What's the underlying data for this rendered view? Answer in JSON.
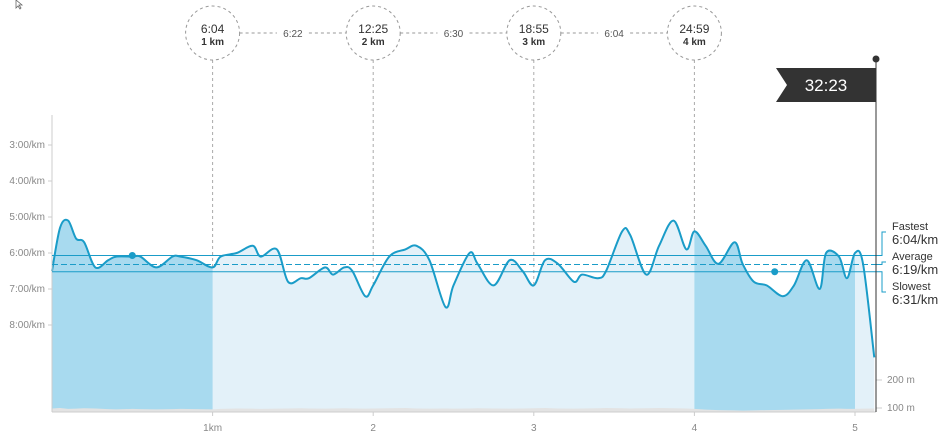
{
  "chart_data": {
    "type": "area",
    "total_time": "32:23",
    "pace_axis": {
      "labels": [
        "3:00/km",
        "4:00/km",
        "5:00/km",
        "6:00/km",
        "7:00/km",
        "8:00/km"
      ],
      "values": [
        3,
        4,
        5,
        6,
        7,
        8
      ],
      "range": [
        2,
        9.8
      ]
    },
    "distance_axis": {
      "labels": [
        "1km",
        "2",
        "3",
        "4",
        "5"
      ],
      "values": [
        1,
        2,
        3,
        4,
        5
      ],
      "range": [
        0,
        5.15
      ]
    },
    "elevation_axis": {
      "labels": [
        "200 m",
        "100 m"
      ]
    },
    "splits": [
      {
        "time": "6:04",
        "km": "1 km",
        "at": 1
      },
      {
        "time": "12:25",
        "km": "2 km",
        "at": 2
      },
      {
        "time": "18:55",
        "km": "3 km",
        "at": 3
      },
      {
        "time": "24:59",
        "km": "4 km",
        "at": 4
      }
    ],
    "split_paces": [
      {
        "pace": "6:22",
        "between": [
          1,
          2
        ]
      },
      {
        "pace": "6:30",
        "between": [
          2,
          3
        ]
      },
      {
        "pace": "6:04",
        "between": [
          3,
          4
        ]
      }
    ],
    "fastest": {
      "label": "Fastest",
      "value": "6:04/km",
      "pace": 6.07
    },
    "average": {
      "label": "Average",
      "value": "6:19/km",
      "pace": 6.32
    },
    "slowest": {
      "label": "Slowest",
      "value": "6:31/km",
      "pace": 6.52
    },
    "markers": [
      {
        "x": 0.5,
        "pace": 6.07
      },
      {
        "x": 4.5,
        "pace": 6.52
      }
    ],
    "series": [
      {
        "x": [
          0,
          0.05,
          0.1,
          0.15,
          0.2,
          0.27,
          0.35,
          0.4,
          0.5,
          0.55,
          0.65,
          0.75,
          0.8,
          0.9,
          1.0,
          1.05,
          1.15,
          1.25,
          1.3,
          1.4,
          1.47,
          1.55,
          1.6,
          1.7,
          1.75,
          1.82,
          1.87,
          1.95,
          2.0,
          2.1,
          2.2,
          2.27,
          2.35,
          2.45,
          2.5,
          2.6,
          2.65,
          2.75,
          2.85,
          2.93,
          3.0,
          3.07,
          3.15,
          3.25,
          3.3,
          3.4,
          3.45,
          3.55,
          3.6,
          3.7,
          3.78,
          3.87,
          3.95,
          4.0,
          4.07,
          4.15,
          4.25,
          4.3,
          4.37,
          4.45,
          4.55,
          4.62,
          4.7,
          4.78,
          4.82,
          4.9,
          4.95,
          5.0,
          5.05,
          5.12
        ],
        "pace": [
          6.5,
          5.3,
          5.1,
          5.6,
          5.7,
          6.4,
          6.2,
          6.1,
          6.1,
          6.1,
          6.4,
          6.1,
          6.1,
          6.2,
          6.4,
          6.1,
          6.0,
          5.8,
          6.1,
          5.9,
          6.8,
          6.7,
          6.7,
          6.4,
          6.6,
          6.4,
          6.5,
          7.2,
          6.9,
          6.1,
          5.9,
          5.8,
          6.2,
          7.5,
          6.9,
          6.0,
          6.3,
          6.9,
          6.2,
          6.5,
          6.9,
          6.2,
          6.3,
          6.8,
          6.6,
          6.7,
          6.5,
          5.4,
          5.5,
          6.6,
          5.8,
          5.1,
          5.9,
          5.4,
          5.8,
          6.3,
          5.7,
          6.3,
          6.8,
          6.9,
          7.2,
          6.9,
          6.2,
          7.0,
          6.0,
          6.1,
          6.7,
          6.0,
          6.3,
          8.9
        ],
        "elevation": [
          110,
          112,
          108,
          109,
          111,
          110,
          107,
          106,
          108,
          107,
          106,
          107,
          108,
          107,
          106,
          108,
          110,
          109,
          108,
          109,
          110,
          111,
          110,
          109,
          110,
          111,
          110,
          109,
          110,
          111,
          112,
          110,
          109,
          110,
          109,
          110,
          111,
          110,
          109,
          110,
          111,
          112,
          110,
          109,
          110,
          111,
          112,
          111,
          110,
          111,
          112,
          111,
          110,
          108,
          105,
          103,
          102,
          101,
          102,
          103,
          104,
          105,
          106,
          107,
          108,
          109,
          108,
          108,
          109,
          110
        ]
      }
    ],
    "highlight_ranges": [
      [
        0,
        1
      ],
      [
        4,
        5
      ]
    ],
    "elevation_range": [
      95,
      230
    ],
    "colors": {
      "line": "#1a9cc8",
      "fill_highlight": "#a8daef",
      "fill_light": "#e3f1f9",
      "elevation_fill": "#e3e3e3",
      "grid": "#cccccc",
      "flag": "#333333"
    }
  }
}
